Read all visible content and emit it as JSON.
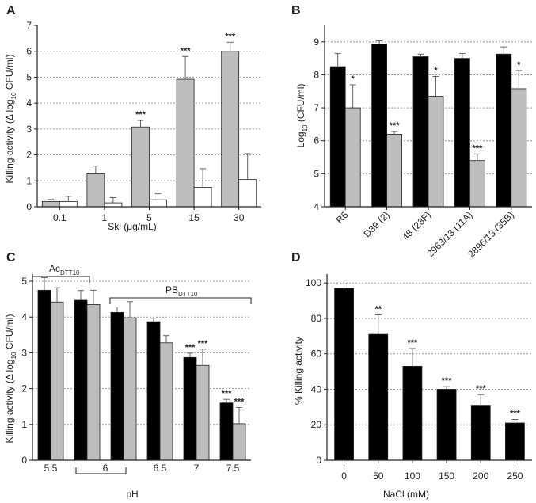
{
  "colors": {
    "black_bar": "#000000",
    "gray_bar": "#bdbdbd",
    "white_bar": "#ffffff",
    "grid": "#9a9a9a",
    "axis": "#222222"
  },
  "chart_data": [
    {
      "panel": "A",
      "type": "bar",
      "categories": [
        "0.1",
        "1",
        "5",
        "15",
        "30"
      ],
      "series": [
        {
          "name": "gray",
          "color": "gray_bar",
          "values": [
            0.2,
            1.27,
            3.08,
            4.92,
            6.0
          ],
          "errors": [
            0.08,
            0.3,
            0.25,
            0.88,
            0.35
          ],
          "stars": [
            "",
            "",
            "***",
            "***",
            "***"
          ]
        },
        {
          "name": "white",
          "color": "white_bar",
          "values": [
            0.2,
            0.15,
            0.27,
            0.75,
            1.05
          ],
          "errors": [
            0.2,
            0.2,
            0.23,
            0.72,
            1.0
          ],
          "stars": [
            "",
            "",
            "",
            "",
            ""
          ]
        }
      ],
      "xlabel": "Skl (μg/mL)",
      "ylabel_main": "Killing activity (Δ log",
      "ylabel_sub": "10",
      "ylabel_tail": " CFU/ml)",
      "ylim": [
        0,
        7
      ],
      "yticks": [
        "0",
        "1",
        "2",
        "3",
        "4",
        "5",
        "6",
        "7"
      ],
      "grid_lines": [
        1,
        2,
        3,
        4,
        5,
        6
      ],
      "grid": true
    },
    {
      "panel": "B",
      "type": "bar",
      "categories": [
        "R6",
        "D39 (2)",
        "48 (23F)",
        "2963/13 (11A)",
        "2896/13 (35B)"
      ],
      "series": [
        {
          "name": "black",
          "color": "black_bar",
          "values": [
            8.25,
            8.93,
            8.55,
            8.5,
            8.63
          ],
          "errors": [
            0.4,
            0.1,
            0.08,
            0.15,
            0.22
          ],
          "stars": [
            "",
            "",
            "",
            "",
            ""
          ]
        },
        {
          "name": "gray",
          "color": "gray_bar",
          "values": [
            7.0,
            6.2,
            7.35,
            5.4,
            7.58
          ],
          "errors": [
            0.7,
            0.08,
            0.6,
            0.2,
            0.55
          ],
          "stars": [
            "*",
            "***",
            "*",
            "***",
            "*"
          ]
        }
      ],
      "xlabel": "",
      "ylabel_main": "Log",
      "ylabel_sub": "10",
      "ylabel_tail": " (CFU/ml)",
      "ylim": [
        4,
        9.5
      ],
      "yticks": [
        "4",
        "5",
        "6",
        "7",
        "8",
        "9"
      ],
      "grid_lines": [
        5,
        6,
        7,
        8,
        9
      ],
      "grid": true
    },
    {
      "panel": "C",
      "type": "bar",
      "categories": [
        "5.5",
        "6",
        "6",
        "6.5",
        "7",
        "7.5"
      ],
      "xtick_labels": [
        "5.5",
        "6",
        "6.5",
        "7",
        "7.5"
      ],
      "series": [
        {
          "name": "black",
          "color": "black_bar",
          "values": [
            4.75,
            4.47,
            4.13,
            3.87,
            2.87,
            1.6
          ],
          "errors": [
            0.35,
            0.27,
            0.15,
            0.1,
            0.12,
            0.1
          ],
          "stars": [
            "",
            "",
            "",
            "",
            "***",
            "***"
          ]
        },
        {
          "name": "gray",
          "color": "gray_bar",
          "values": [
            4.42,
            4.35,
            3.98,
            3.28,
            2.65,
            1.02
          ],
          "errors": [
            0.4,
            0.4,
            0.45,
            0.2,
            0.45,
            0.45
          ],
          "stars": [
            "",
            "",
            "",
            "",
            "***",
            "***"
          ]
        }
      ],
      "xlabel": "pH",
      "ylabel_main": "Killing activity (Δ log",
      "ylabel_sub": "10",
      "ylabel_tail": " CFU/ml)",
      "ylim": [
        0,
        5.2
      ],
      "yticks": [
        "0",
        "1",
        "2",
        "3",
        "4",
        "5"
      ],
      "grid_lines": [
        1,
        2,
        3,
        4,
        5
      ],
      "grid": true,
      "annotations": {
        "ac_main": "Ac",
        "ac_sub": "DTT10",
        "pb_main": "PB",
        "pb_sub": "DTT10"
      }
    },
    {
      "panel": "D",
      "type": "bar",
      "categories": [
        "0",
        "50",
        "100",
        "150",
        "200",
        "250"
      ],
      "series": [
        {
          "name": "black",
          "color": "black_bar",
          "values": [
            97,
            71,
            53,
            40,
            31,
            21
          ],
          "errors": [
            2.5,
            11,
            10,
            1.5,
            6,
            2
          ],
          "stars": [
            "",
            "**",
            "***",
            "***",
            "***",
            "***"
          ]
        }
      ],
      "xlabel": "NaCl (mM)",
      "ylabel_main": "% Killing activity",
      "ylabel_sub": "",
      "ylabel_tail": "",
      "ylim": [
        0,
        105
      ],
      "yticks": [
        "0",
        "20",
        "40",
        "60",
        "80",
        "100"
      ],
      "grid_lines": [
        20,
        40,
        60,
        80,
        100
      ],
      "grid": true
    }
  ]
}
